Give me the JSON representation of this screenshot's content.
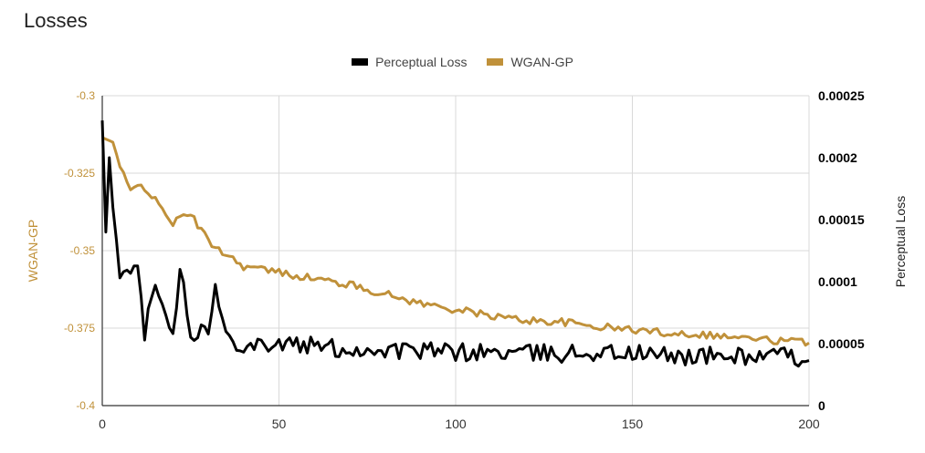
{
  "chart_data": {
    "type": "line",
    "title": "Losses",
    "legend": {
      "placement": "top-center"
    },
    "grid": true,
    "x": {
      "range": [
        0,
        200
      ],
      "ticks": [
        "0",
        "50",
        "100",
        "150",
        "200"
      ]
    },
    "y_left": {
      "label": "WGAN-GP",
      "range": [
        -0.4,
        -0.3
      ],
      "ticks": [
        "-0.3",
        "-0.325",
        "-0.35",
        "-0.375",
        "-0.4"
      ],
      "color": "#c0913a"
    },
    "y_right": {
      "label": "Perceptual Loss",
      "range": [
        0,
        0.00025
      ],
      "ticks": [
        "0.00025",
        "0.0002",
        "0.00015",
        "0.0001",
        "0.00005",
        "0"
      ],
      "color": "#000000"
    },
    "series": [
      {
        "name": "Perceptual Loss",
        "axis": "right",
        "color": "#000000",
        "keypoints": [
          [
            0,
            0.00023
          ],
          [
            1,
            0.00014
          ],
          [
            2,
            0.0002
          ],
          [
            3,
            0.00016
          ],
          [
            5,
            0.00011
          ],
          [
            8,
            0.000105
          ],
          [
            10,
            0.00011
          ],
          [
            12,
            6e-05
          ],
          [
            15,
            0.0001
          ],
          [
            18,
            8e-05
          ],
          [
            20,
            5.5e-05
          ],
          [
            22,
            0.000115
          ],
          [
            25,
            6e-05
          ],
          [
            30,
            6e-05
          ],
          [
            32,
            9.5e-05
          ],
          [
            35,
            5.5e-05
          ],
          [
            40,
            5e-05
          ],
          [
            50,
            5e-05
          ],
          [
            60,
            4.8e-05
          ],
          [
            70,
            4.5e-05
          ],
          [
            80,
            4.5e-05
          ],
          [
            90,
            4.4e-05
          ],
          [
            100,
            4.3e-05
          ],
          [
            110,
            4.3e-05
          ],
          [
            120,
            4.2e-05
          ],
          [
            130,
            4.2e-05
          ],
          [
            140,
            4.3e-05
          ],
          [
            150,
            4.2e-05
          ],
          [
            160,
            4e-05
          ],
          [
            170,
            4e-05
          ],
          [
            180,
            4e-05
          ],
          [
            190,
            4e-05
          ],
          [
            200,
            3.8e-05
          ]
        ]
      },
      {
        "name": "WGAN-GP",
        "axis": "left",
        "color": "#c0913a",
        "keypoints": [
          [
            0,
            -0.3135
          ],
          [
            3,
            -0.315
          ],
          [
            5,
            -0.323
          ],
          [
            8,
            -0.331
          ],
          [
            11,
            -0.328
          ],
          [
            15,
            -0.334
          ],
          [
            20,
            -0.341
          ],
          [
            25,
            -0.338
          ],
          [
            30,
            -0.347
          ],
          [
            35,
            -0.351
          ],
          [
            40,
            -0.355
          ],
          [
            50,
            -0.357
          ],
          [
            60,
            -0.359
          ],
          [
            70,
            -0.361
          ],
          [
            80,
            -0.364
          ],
          [
            90,
            -0.367
          ],
          [
            100,
            -0.369
          ],
          [
            110,
            -0.371
          ],
          [
            120,
            -0.3725
          ],
          [
            130,
            -0.373
          ],
          [
            140,
            -0.3745
          ],
          [
            150,
            -0.3755
          ],
          [
            160,
            -0.3765
          ],
          [
            170,
            -0.377
          ],
          [
            180,
            -0.378
          ],
          [
            190,
            -0.379
          ],
          [
            200,
            -0.3795
          ]
        ]
      }
    ]
  }
}
